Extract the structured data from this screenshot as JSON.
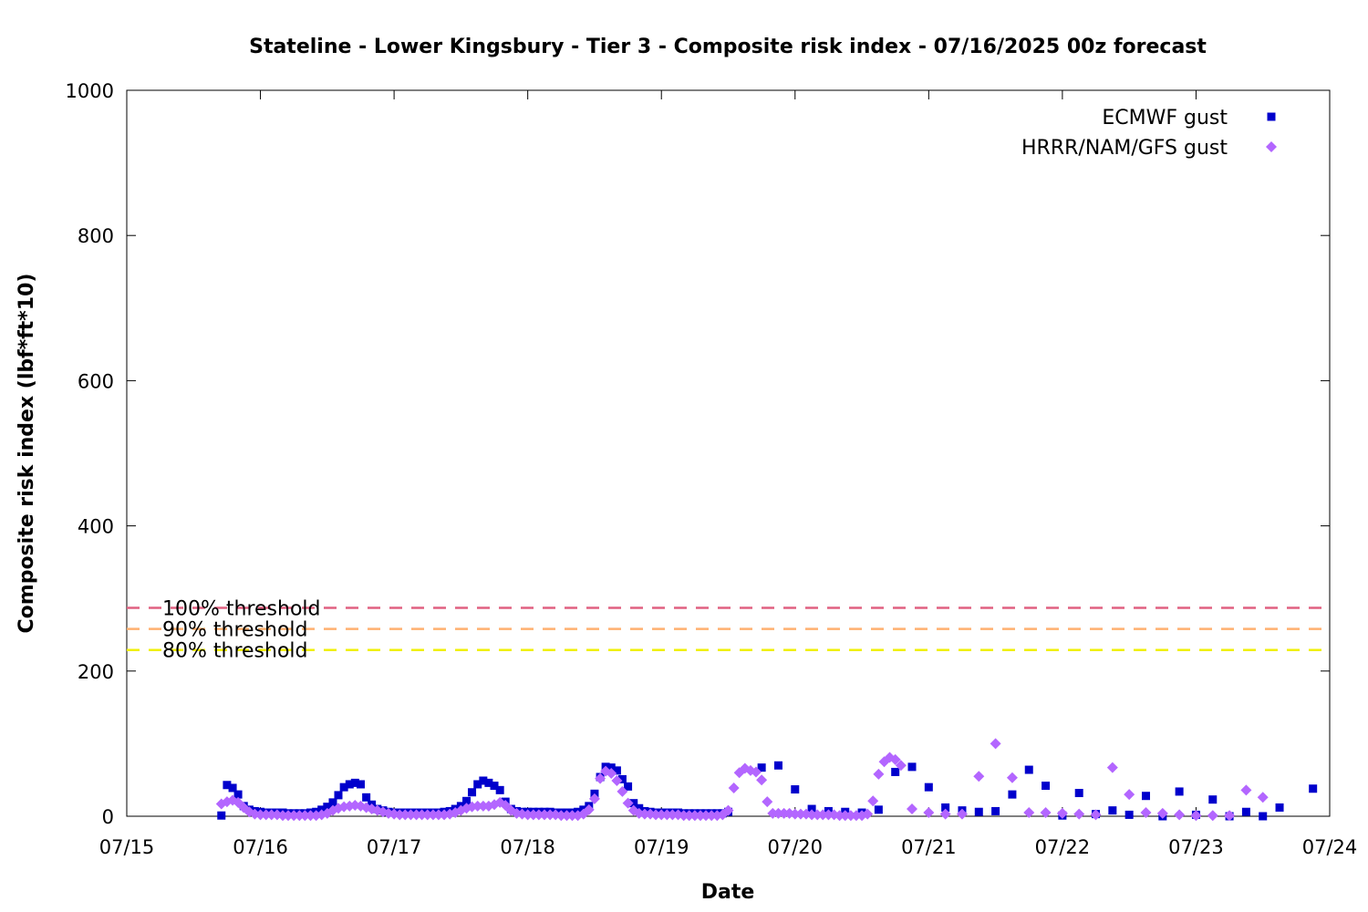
{
  "chart_data": {
    "type": "scatter",
    "title": "Stateline - Lower Kingsbury - Tier 3 - Composite risk index - 07/16/2025 00z forecast",
    "xlabel": "Date",
    "ylabel": "Composite risk index (lbf*ft*10)",
    "x_unit": "days since 07/15 00:00",
    "xlim": [
      0,
      9
    ],
    "ylim": [
      0,
      1000
    ],
    "x_ticks": [
      "07/15",
      "07/16",
      "07/17",
      "07/18",
      "07/19",
      "07/20",
      "07/21",
      "07/22",
      "07/23",
      "07/24"
    ],
    "y_ticks": [
      "0",
      "200",
      "400",
      "600",
      "800",
      "1000"
    ],
    "y_tick_values": [
      0,
      200,
      400,
      600,
      800,
      1000
    ],
    "grid": false,
    "legend_position": "top-right",
    "thresholds": [
      {
        "label": "100% threshold",
        "value": 287,
        "color": "#e06080"
      },
      {
        "label": "90% threshold",
        "value": 258,
        "color": "#ffb070"
      },
      {
        "label": "80% threshold",
        "value": 229,
        "color": "#f0f000"
      }
    ],
    "series": [
      {
        "name": "ECMWF gust",
        "marker": "square",
        "color": "#0000cc",
        "points": [
          [
            0.708,
            1
          ],
          [
            0.75,
            43
          ],
          [
            0.792,
            39
          ],
          [
            0.833,
            30
          ],
          [
            0.875,
            14
          ],
          [
            0.917,
            9
          ],
          [
            0.958,
            7
          ],
          [
            1.0,
            6
          ],
          [
            1.042,
            5
          ],
          [
            1.083,
            5
          ],
          [
            1.125,
            5
          ],
          [
            1.167,
            5
          ],
          [
            1.208,
            4
          ],
          [
            1.25,
            4
          ],
          [
            1.292,
            4
          ],
          [
            1.333,
            4
          ],
          [
            1.375,
            5
          ],
          [
            1.417,
            6
          ],
          [
            1.458,
            9
          ],
          [
            1.5,
            13
          ],
          [
            1.542,
            19
          ],
          [
            1.583,
            29
          ],
          [
            1.625,
            40
          ],
          [
            1.667,
            44
          ],
          [
            1.708,
            46
          ],
          [
            1.75,
            44
          ],
          [
            1.792,
            26
          ],
          [
            1.833,
            16
          ],
          [
            1.875,
            10
          ],
          [
            1.917,
            8
          ],
          [
            1.958,
            6
          ],
          [
            2.0,
            5
          ],
          [
            2.042,
            5
          ],
          [
            2.083,
            5
          ],
          [
            2.125,
            5
          ],
          [
            2.167,
            5
          ],
          [
            2.208,
            5
          ],
          [
            2.25,
            5
          ],
          [
            2.292,
            5
          ],
          [
            2.333,
            5
          ],
          [
            2.375,
            6
          ],
          [
            2.417,
            7
          ],
          [
            2.458,
            10
          ],
          [
            2.5,
            14
          ],
          [
            2.542,
            21
          ],
          [
            2.583,
            33
          ],
          [
            2.625,
            44
          ],
          [
            2.667,
            49
          ],
          [
            2.708,
            46
          ],
          [
            2.75,
            42
          ],
          [
            2.792,
            36
          ],
          [
            2.833,
            20
          ],
          [
            2.875,
            10
          ],
          [
            2.917,
            7
          ],
          [
            2.958,
            6
          ],
          [
            3.0,
            6
          ],
          [
            3.042,
            6
          ],
          [
            3.083,
            6
          ],
          [
            3.125,
            6
          ],
          [
            3.167,
            6
          ],
          [
            3.208,
            5
          ],
          [
            3.25,
            5
          ],
          [
            3.292,
            5
          ],
          [
            3.333,
            5
          ],
          [
            3.375,
            6
          ],
          [
            3.417,
            9
          ],
          [
            3.458,
            14
          ],
          [
            3.5,
            31
          ],
          [
            3.542,
            54
          ],
          [
            3.583,
            68
          ],
          [
            3.625,
            67
          ],
          [
            3.667,
            63
          ],
          [
            3.708,
            51
          ],
          [
            3.75,
            41
          ],
          [
            3.792,
            18
          ],
          [
            3.833,
            11
          ],
          [
            3.875,
            7
          ],
          [
            3.917,
            6
          ],
          [
            3.958,
            5
          ],
          [
            4.0,
            5
          ],
          [
            4.042,
            5
          ],
          [
            4.083,
            5
          ],
          [
            4.125,
            5
          ],
          [
            4.167,
            4
          ],
          [
            4.208,
            4
          ],
          [
            4.25,
            4
          ],
          [
            4.292,
            4
          ],
          [
            4.333,
            4
          ],
          [
            4.375,
            4
          ],
          [
            4.417,
            4
          ],
          [
            4.458,
            4
          ],
          [
            4.5,
            6
          ],
          [
            4.75,
            67
          ],
          [
            4.875,
            70
          ],
          [
            5.0,
            37
          ],
          [
            5.125,
            10
          ],
          [
            5.25,
            7
          ],
          [
            5.375,
            6
          ],
          [
            5.5,
            5
          ],
          [
            5.625,
            9
          ],
          [
            5.75,
            61
          ],
          [
            5.875,
            68
          ],
          [
            6.0,
            40
          ],
          [
            6.125,
            12
          ],
          [
            6.25,
            8
          ],
          [
            6.375,
            6
          ],
          [
            6.5,
            7
          ],
          [
            6.625,
            30
          ],
          [
            6.75,
            64
          ],
          [
            6.875,
            42
          ],
          [
            7.0,
            1
          ],
          [
            7.125,
            32
          ],
          [
            7.25,
            3
          ],
          [
            7.375,
            8
          ],
          [
            7.5,
            2
          ],
          [
            7.625,
            28
          ],
          [
            7.75,
            0
          ],
          [
            7.875,
            34
          ],
          [
            8.0,
            2
          ],
          [
            8.125,
            23
          ],
          [
            8.25,
            0
          ],
          [
            8.375,
            6
          ],
          [
            8.5,
            0
          ],
          [
            8.625,
            12
          ],
          [
            8.875,
            38
          ]
        ]
      },
      {
        "name": "HRRR/NAM/GFS gust",
        "marker": "diamond",
        "color": "#b366ff",
        "points": [
          [
            0.708,
            17
          ],
          [
            0.75,
            20
          ],
          [
            0.792,
            22
          ],
          [
            0.833,
            19
          ],
          [
            0.875,
            12
          ],
          [
            0.917,
            6
          ],
          [
            0.958,
            3
          ],
          [
            1.0,
            2
          ],
          [
            1.042,
            2
          ],
          [
            1.083,
            2
          ],
          [
            1.125,
            2
          ],
          [
            1.167,
            1
          ],
          [
            1.208,
            1
          ],
          [
            1.25,
            1
          ],
          [
            1.292,
            1
          ],
          [
            1.333,
            1
          ],
          [
            1.375,
            1
          ],
          [
            1.417,
            1
          ],
          [
            1.458,
            2
          ],
          [
            1.5,
            4
          ],
          [
            1.542,
            8
          ],
          [
            1.583,
            11
          ],
          [
            1.625,
            13
          ],
          [
            1.667,
            14
          ],
          [
            1.708,
            15
          ],
          [
            1.75,
            14
          ],
          [
            1.792,
            12
          ],
          [
            1.833,
            10
          ],
          [
            1.875,
            8
          ],
          [
            1.917,
            6
          ],
          [
            1.958,
            4
          ],
          [
            2.0,
            3
          ],
          [
            2.042,
            2
          ],
          [
            2.083,
            2
          ],
          [
            2.125,
            2
          ],
          [
            2.167,
            2
          ],
          [
            2.208,
            2
          ],
          [
            2.25,
            2
          ],
          [
            2.292,
            2
          ],
          [
            2.333,
            2
          ],
          [
            2.375,
            2
          ],
          [
            2.417,
            3
          ],
          [
            2.458,
            5
          ],
          [
            2.5,
            8
          ],
          [
            2.542,
            11
          ],
          [
            2.583,
            13
          ],
          [
            2.625,
            14
          ],
          [
            2.667,
            14
          ],
          [
            2.708,
            14
          ],
          [
            2.75,
            16
          ],
          [
            2.792,
            19
          ],
          [
            2.833,
            15
          ],
          [
            2.875,
            8
          ],
          [
            2.917,
            4
          ],
          [
            2.958,
            3
          ],
          [
            3.0,
            2
          ],
          [
            3.042,
            2
          ],
          [
            3.083,
            2
          ],
          [
            3.125,
            2
          ],
          [
            3.167,
            2
          ],
          [
            3.208,
            2
          ],
          [
            3.25,
            1
          ],
          [
            3.292,
            1
          ],
          [
            3.333,
            1
          ],
          [
            3.375,
            1
          ],
          [
            3.417,
            3
          ],
          [
            3.458,
            9
          ],
          [
            3.5,
            24
          ],
          [
            3.542,
            52
          ],
          [
            3.583,
            62
          ],
          [
            3.625,
            59
          ],
          [
            3.667,
            49
          ],
          [
            3.708,
            34
          ],
          [
            3.75,
            18
          ],
          [
            3.792,
            8
          ],
          [
            3.833,
            4
          ],
          [
            3.875,
            3
          ],
          [
            3.917,
            3
          ],
          [
            3.958,
            2
          ],
          [
            4.0,
            2
          ],
          [
            4.042,
            2
          ],
          [
            4.083,
            2
          ],
          [
            4.125,
            2
          ],
          [
            4.167,
            1
          ],
          [
            4.208,
            1
          ],
          [
            4.25,
            1
          ],
          [
            4.292,
            1
          ],
          [
            4.333,
            1
          ],
          [
            4.375,
            1
          ],
          [
            4.417,
            1
          ],
          [
            4.458,
            2
          ],
          [
            4.5,
            8
          ],
          [
            4.542,
            39
          ],
          [
            4.583,
            60
          ],
          [
            4.625,
            66
          ],
          [
            4.667,
            63
          ],
          [
            4.708,
            61
          ],
          [
            4.75,
            50
          ],
          [
            4.792,
            20
          ],
          [
            4.833,
            4
          ],
          [
            4.875,
            4
          ],
          [
            4.917,
            4
          ],
          [
            4.958,
            4
          ],
          [
            5.0,
            3
          ],
          [
            5.042,
            3
          ],
          [
            5.083,
            3
          ],
          [
            5.125,
            2
          ],
          [
            5.167,
            2
          ],
          [
            5.208,
            2
          ],
          [
            5.25,
            2
          ],
          [
            5.292,
            2
          ],
          [
            5.333,
            1
          ],
          [
            5.375,
            1
          ],
          [
            5.417,
            1
          ],
          [
            5.458,
            1
          ],
          [
            5.5,
            1
          ],
          [
            5.542,
            3
          ],
          [
            5.583,
            21
          ],
          [
            5.625,
            58
          ],
          [
            5.667,
            75
          ],
          [
            5.708,
            81
          ],
          [
            5.75,
            78
          ],
          [
            5.792,
            70
          ],
          [
            5.875,
            10
          ],
          [
            6.0,
            5
          ],
          [
            6.125,
            3
          ],
          [
            6.25,
            3
          ],
          [
            6.375,
            55
          ],
          [
            6.5,
            100
          ],
          [
            6.625,
            53
          ],
          [
            6.75,
            5
          ],
          [
            6.875,
            5
          ],
          [
            7.0,
            4
          ],
          [
            7.125,
            3
          ],
          [
            7.25,
            2
          ],
          [
            7.375,
            67
          ],
          [
            7.5,
            30
          ],
          [
            7.625,
            5
          ],
          [
            7.75,
            4
          ],
          [
            7.875,
            2
          ],
          [
            8.0,
            1
          ],
          [
            8.125,
            1
          ],
          [
            8.25,
            1
          ],
          [
            8.375,
            36
          ],
          [
            8.5,
            26
          ]
        ]
      }
    ]
  }
}
